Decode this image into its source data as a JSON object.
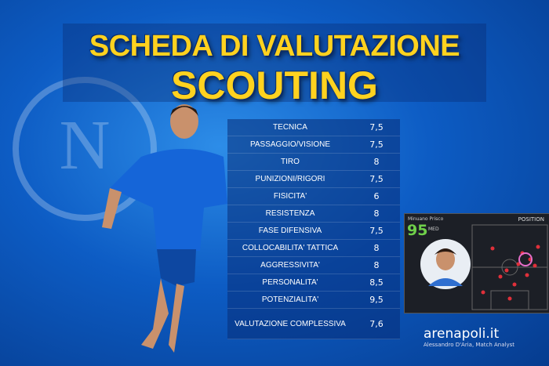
{
  "header": {
    "title": "SCHEDA DI VALUTAZIONE",
    "subtitle": "SCOUTING"
  },
  "table": {
    "rows": [
      [
        "TECNICA",
        "7,5"
      ],
      [
        "PASSAGGIO/VISIONE",
        "7,5"
      ],
      [
        "TIRO",
        "8"
      ],
      [
        "PUNIZIONI/RIGORI",
        "7,5"
      ],
      [
        "FISICITA'",
        "6"
      ],
      [
        "RESISTENZA",
        "8"
      ],
      [
        "FASE DIFENSIVA",
        "7,5"
      ],
      [
        "COLLOCABILITA' TATTICA",
        "8"
      ],
      [
        "AGGRESSIVITA'",
        "8"
      ],
      [
        "PERSONALITA'",
        "8,5"
      ],
      [
        "POTENZIALITA'",
        "9,5"
      ],
      [
        "VALUTAZIONE COMPLESSIVA",
        "7,6"
      ]
    ]
  },
  "card": {
    "name": "Minuano Prisco",
    "rating": "95",
    "role": "MED",
    "position": "POSITION"
  },
  "footer": {
    "brand": "arenapoli.it",
    "author": "Alessandro D'Aria, Match Analyst"
  }
}
